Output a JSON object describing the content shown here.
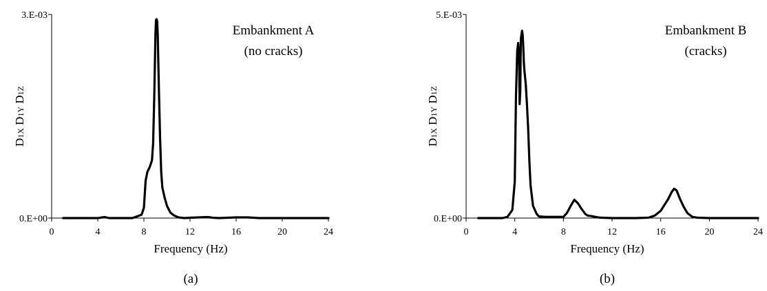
{
  "chart_data": [
    {
      "type": "line",
      "panel_label": "(a)",
      "annotation": [
        "Embankment A",
        "(no cracks)"
      ],
      "xlabel": "Frequency (Hz)",
      "ylabel": "D1X D1Y D1Z",
      "ylabel_parts": [
        "D",
        "1X",
        "D",
        "1Y",
        "D",
        "1Z"
      ],
      "xlim": [
        0,
        24
      ],
      "ylim": [
        0,
        0.003
      ],
      "x_ticks": [
        0,
        4,
        8,
        12,
        16,
        20,
        24
      ],
      "x_tick_labels": [
        "0",
        "4",
        "8",
        "12",
        "16",
        "20",
        "24"
      ],
      "y_tick_labels": [
        "0.E+00",
        "3.E-03"
      ],
      "series": [
        {
          "x": [
            1.0,
            2.0,
            4.0,
            4.6,
            5.0,
            7.0,
            7.5,
            7.8,
            8.0,
            8.15,
            8.3,
            8.5,
            8.7,
            8.8,
            8.9,
            9.0,
            9.05,
            9.1,
            9.15,
            9.2,
            9.3,
            9.4,
            9.5,
            9.6,
            9.8,
            10.0,
            10.3,
            10.6,
            11.0,
            11.5,
            12.0,
            13.5,
            14.0,
            14.5,
            16.0,
            17.0,
            18.0,
            21.0,
            22.0,
            24.0
          ],
          "y": [
            0,
            0,
            0,
            1.5e-05,
            0,
            0,
            3e-05,
            5e-05,
            0.00015,
            0.00055,
            0.00068,
            0.00075,
            0.00085,
            0.0011,
            0.0018,
            0.0027,
            0.00292,
            0.00293,
            0.0029,
            0.0027,
            0.0019,
            0.0012,
            0.00068,
            0.00045,
            0.0003,
            0.00018,
            8e-05,
            4e-05,
            1e-05,
            0,
            5e-06,
            1.5e-05,
            5e-06,
            0,
            1e-05,
            1e-05,
            0,
            0,
            0,
            0
          ]
        }
      ]
    },
    {
      "type": "line",
      "panel_label": "(b)",
      "annotation": [
        "Embankment B",
        "(cracks)"
      ],
      "xlabel": "Frequency (Hz)",
      "ylabel": "D1X D1Y D1Z",
      "ylabel_parts": [
        "D",
        "1X",
        "D",
        "1Y",
        "D",
        "1Z"
      ],
      "xlim": [
        0,
        24
      ],
      "ylim": [
        0,
        0.005
      ],
      "x_ticks": [
        0,
        4,
        8,
        12,
        16,
        20,
        24
      ],
      "x_tick_labels": [
        "0",
        "4",
        "8",
        "12",
        "16",
        "20",
        "24"
      ],
      "y_tick_labels": [
        "0.E+00",
        "5.E-03"
      ],
      "series": [
        {
          "x": [
            1.0,
            3.0,
            3.4,
            3.8,
            4.0,
            4.1,
            4.2,
            4.28,
            4.35,
            4.4,
            4.45,
            4.5,
            4.55,
            4.6,
            4.65,
            4.7,
            4.75,
            4.8,
            4.9,
            5.0,
            5.1,
            5.2,
            5.3,
            5.5,
            5.8,
            6.0,
            6.5,
            7.0,
            8.0,
            8.3,
            8.6,
            8.9,
            9.0,
            9.2,
            9.5,
            9.8,
            10.0,
            10.3,
            10.6,
            11.0,
            12.0,
            14.0,
            15.0,
            15.5,
            16.0,
            16.3,
            16.6,
            16.9,
            17.1,
            17.3,
            17.6,
            17.9,
            18.2,
            18.6,
            19.0,
            20.0,
            22.0,
            24.0
          ],
          "y": [
            0,
            0,
            3e-05,
            0.0002,
            0.0009,
            0.003,
            0.0041,
            0.0043,
            0.004,
            0.0028,
            0.0031,
            0.0044,
            0.0045,
            0.0046,
            0.0045,
            0.0042,
            0.0038,
            0.0036,
            0.0033,
            0.0028,
            0.0022,
            0.0014,
            0.0008,
            0.0003,
            0.0001,
            4e-05,
            3e-05,
            3e-05,
            3e-05,
            0.00013,
            0.0003,
            0.00045,
            0.00042,
            0.00036,
            0.00022,
            0.0001,
            6e-05,
            5e-05,
            3e-05,
            1e-05,
            0,
            0,
            1e-05,
            6e-05,
            0.00018,
            0.00032,
            0.00046,
            0.00064,
            0.00072,
            0.00068,
            0.00046,
            0.00027,
            0.00012,
            3e-05,
            1e-05,
            0,
            0,
            0
          ]
        }
      ]
    }
  ]
}
